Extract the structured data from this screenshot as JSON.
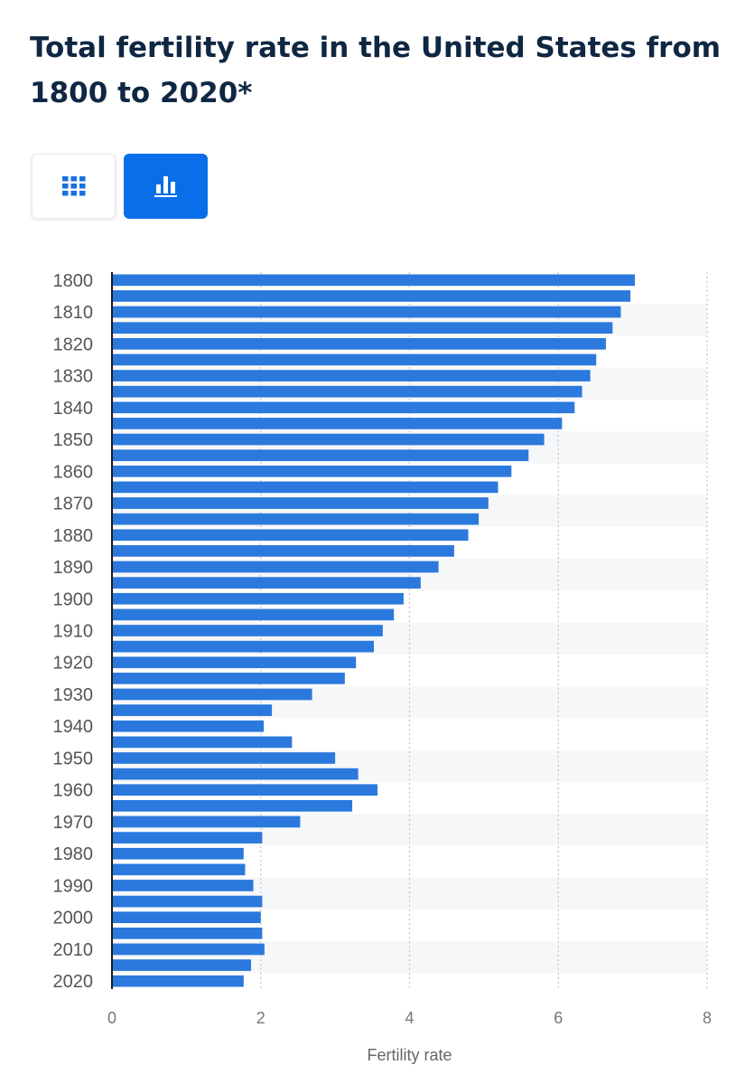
{
  "header": {
    "title": "Total fertility rate in the United States from 1800 to 2020*"
  },
  "view_toggle": {
    "table_icon": "grid-icon",
    "chart_icon": "bar-chart-icon",
    "active": "chart",
    "active_color": "#0a6ee8"
  },
  "chart_data": {
    "type": "bar",
    "orientation": "horizontal",
    "categories": [
      "1800",
      "1805",
      "1810",
      "1815",
      "1820",
      "1825",
      "1830",
      "1835",
      "1840",
      "1845",
      "1850",
      "1855",
      "1860",
      "1865",
      "1870",
      "1875",
      "1880",
      "1885",
      "1890",
      "1895",
      "1900",
      "1905",
      "1910",
      "1915",
      "1920",
      "1925",
      "1930",
      "1935",
      "1940",
      "1945",
      "1950",
      "1955",
      "1960",
      "1965",
      "1970",
      "1975",
      "1980",
      "1985",
      "1990",
      "1995",
      "2000",
      "2005",
      "2010",
      "2015",
      "2020"
    ],
    "tick_labels": [
      "1800",
      "1810",
      "1820",
      "1830",
      "1840",
      "1850",
      "1860",
      "1870",
      "1880",
      "1890",
      "1900",
      "1910",
      "1920",
      "1930",
      "1940",
      "1950",
      "1960",
      "1970",
      "1980",
      "1990",
      "2000",
      "2010",
      "2020"
    ],
    "values": [
      7.03,
      6.97,
      6.84,
      6.73,
      6.64,
      6.51,
      6.43,
      6.32,
      6.22,
      6.05,
      5.81,
      5.6,
      5.37,
      5.19,
      5.06,
      4.93,
      4.79,
      4.6,
      4.39,
      4.15,
      3.92,
      3.79,
      3.64,
      3.52,
      3.28,
      3.13,
      2.69,
      2.15,
      2.04,
      2.42,
      3.0,
      3.31,
      3.57,
      3.23,
      2.53,
      2.02,
      1.77,
      1.79,
      1.9,
      2.02,
      2.0,
      2.02,
      2.05,
      1.87,
      1.77
    ],
    "xlabel": "Fertility rate",
    "ylabel": "",
    "xlim": [
      0,
      8
    ],
    "xticks": [
      "0",
      "2",
      "4",
      "6",
      "8"
    ],
    "bar_color": "#2b79dd",
    "grid": true
  }
}
